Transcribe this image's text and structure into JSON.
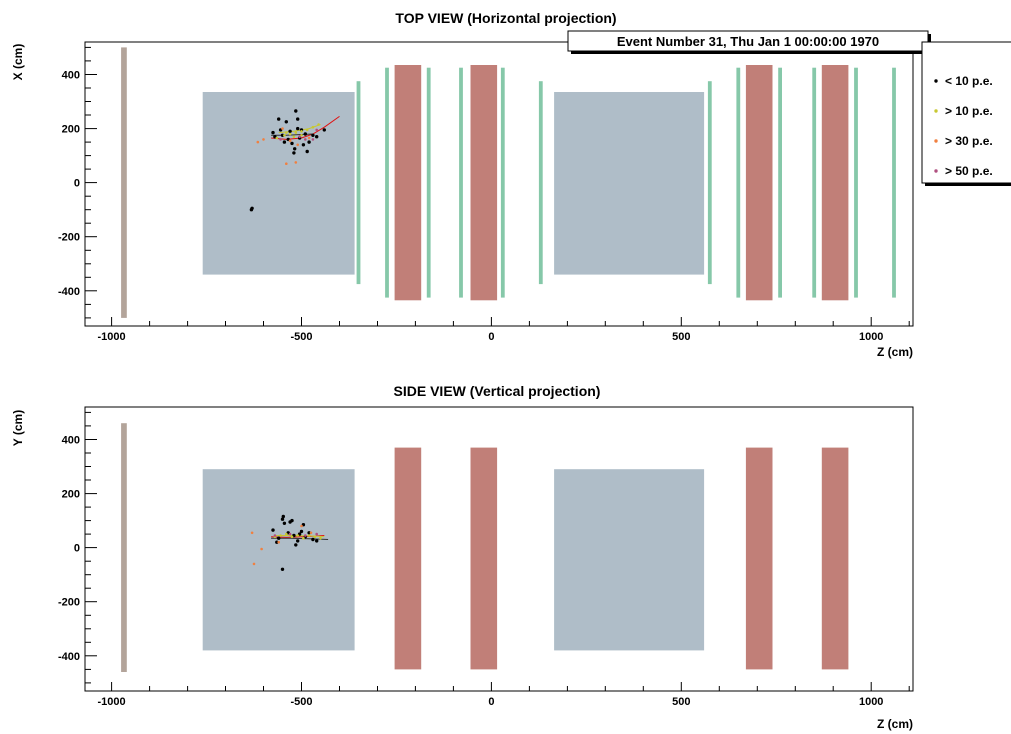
{
  "event_label": "Event Number 31, Thu Jan  1 00:00:00 1970",
  "legend": [
    {
      "label": "< 10 p.e.",
      "color": "#000000"
    },
    {
      "label": "> 10 p.e.",
      "color": "#c8c832"
    },
    {
      "label": "> 30 p.e.",
      "color": "#f08040"
    },
    {
      "label": "> 50 p.e.",
      "color": "#b05080"
    }
  ],
  "colors": {
    "steel": "#b3a49a",
    "block": "#afbdc8",
    "magnet": "#c17f78",
    "station": "#86c8a9",
    "track_red": "#e01010",
    "track_dark": "#333333"
  },
  "chart_data": [
    {
      "type": "scatter",
      "title": "TOP VIEW (Horizontal projection)",
      "xlabel": "Z (cm)",
      "ylabel": "X (cm)",
      "xlim": [
        -1070,
        1110
      ],
      "ylim": [
        -530,
        520
      ],
      "x_ticks": [
        -1000,
        -500,
        0,
        500,
        1000
      ],
      "x_tick_labels": [
        "-1000",
        "-500",
        "0",
        "500",
        "1000"
      ],
      "y_ticks": [
        -400,
        -200,
        0,
        200,
        400
      ],
      "y_tick_labels": [
        "-400",
        "-200",
        "0",
        "200",
        "400"
      ],
      "detector": [
        {
          "kind": "steel",
          "z": [
            -975,
            -960
          ],
          "v": [
            -500,
            500
          ]
        },
        {
          "kind": "block",
          "z": [
            -760,
            -360
          ],
          "v": [
            -340,
            335
          ]
        },
        {
          "kind": "block",
          "z": [
            165,
            560
          ],
          "v": [
            -340,
            335
          ]
        },
        {
          "kind": "magnet",
          "z": [
            -255,
            -185
          ],
          "v": [
            -435,
            435
          ]
        },
        {
          "kind": "magnet",
          "z": [
            -55,
            15
          ],
          "v": [
            -435,
            435
          ]
        },
        {
          "kind": "magnet",
          "z": [
            670,
            740
          ],
          "v": [
            -435,
            435
          ]
        },
        {
          "kind": "magnet",
          "z": [
            870,
            940
          ],
          "v": [
            -435,
            435
          ]
        },
        {
          "kind": "station",
          "z": [
            -355,
            -345
          ],
          "v": [
            -375,
            375
          ]
        },
        {
          "kind": "station",
          "z": [
            -280,
            -270
          ],
          "v": [
            -425,
            425
          ]
        },
        {
          "kind": "station",
          "z": [
            -170,
            -160
          ],
          "v": [
            -425,
            425
          ]
        },
        {
          "kind": "station",
          "z": [
            -85,
            -75
          ],
          "v": [
            -425,
            425
          ]
        },
        {
          "kind": "station",
          "z": [
            25,
            35
          ],
          "v": [
            -425,
            425
          ]
        },
        {
          "kind": "station",
          "z": [
            125,
            135
          ],
          "v": [
            -375,
            375
          ]
        },
        {
          "kind": "station",
          "z": [
            570,
            580
          ],
          "v": [
            -375,
            375
          ]
        },
        {
          "kind": "station",
          "z": [
            645,
            655
          ],
          "v": [
            -425,
            425
          ]
        },
        {
          "kind": "station",
          "z": [
            755,
            765
          ],
          "v": [
            -425,
            425
          ]
        },
        {
          "kind": "station",
          "z": [
            845,
            855
          ],
          "v": [
            -425,
            425
          ]
        },
        {
          "kind": "station",
          "z": [
            955,
            965
          ],
          "v": [
            -425,
            425
          ]
        },
        {
          "kind": "station",
          "z": [
            1055,
            1065
          ],
          "v": [
            -425,
            425
          ]
        }
      ],
      "tracks": [
        {
          "color": "red",
          "points": [
            [
              -580,
              165
            ],
            [
              -540,
              160
            ],
            [
              -500,
              165
            ],
            [
              -470,
              180
            ],
            [
              -440,
              205
            ],
            [
              -400,
              245
            ]
          ]
        },
        {
          "color": "dark",
          "points": [
            [
              -580,
              175
            ],
            [
              -540,
              175
            ],
            [
              -500,
              178
            ],
            [
              -470,
              180
            ]
          ]
        },
        {
          "color": "yellow",
          "points": [
            [
              -560,
              185
            ],
            [
              -520,
              190
            ],
            [
              -480,
              200
            ],
            [
              -450,
              215
            ]
          ]
        }
      ],
      "hits": [
        [
          -575,
          185,
          0
        ],
        [
          -560,
          235,
          0
        ],
        [
          -555,
          195,
          0
        ],
        [
          -550,
          175,
          0
        ],
        [
          -540,
          225,
          0
        ],
        [
          -535,
          160,
          0
        ],
        [
          -530,
          190,
          0
        ],
        [
          -525,
          145,
          0
        ],
        [
          -520,
          110,
          0
        ],
        [
          -518,
          125,
          0
        ],
        [
          -515,
          265,
          0
        ],
        [
          -510,
          235,
          0
        ],
        [
          -505,
          165,
          0
        ],
        [
          -500,
          195,
          0
        ],
        [
          -495,
          140,
          0
        ],
        [
          -490,
          180,
          0
        ],
        [
          -485,
          115,
          0
        ],
        [
          -480,
          150,
          0
        ],
        [
          -470,
          175,
          0
        ],
        [
          -460,
          170,
          0
        ],
        [
          -440,
          195,
          0
        ],
        [
          -570,
          170,
          0
        ],
        [
          -545,
          150,
          0
        ],
        [
          -510,
          200,
          0
        ],
        [
          -630,
          -95,
          0
        ],
        [
          -632,
          -100,
          0
        ],
        [
          -565,
          165,
          1
        ],
        [
          -545,
          175,
          1
        ],
        [
          -530,
          180,
          1
        ],
        [
          -515,
          185,
          1
        ],
        [
          -500,
          190,
          1
        ],
        [
          -485,
          195,
          1
        ],
        [
          -470,
          205,
          1
        ],
        [
          -455,
          215,
          1
        ],
        [
          -520,
          170,
          1
        ],
        [
          -540,
          185,
          1
        ],
        [
          -500,
          175,
          1
        ],
        [
          -615,
          150,
          2
        ],
        [
          -600,
          160,
          2
        ],
        [
          -540,
          70,
          2
        ],
        [
          -515,
          75,
          2
        ],
        [
          -550,
          200,
          2
        ],
        [
          -480,
          165,
          2
        ],
        [
          -530,
          155,
          2
        ],
        [
          -510,
          140,
          2
        ],
        [
          -555,
          160,
          3
        ],
        [
          -505,
          170,
          3
        ],
        [
          -470,
          160,
          3
        ],
        [
          -460,
          195,
          3
        ],
        [
          -490,
          160,
          3
        ]
      ]
    },
    {
      "type": "scatter",
      "title": "SIDE VIEW (Vertical projection)",
      "xlabel": "Z (cm)",
      "ylabel": "Y (cm)",
      "xlim": [
        -1070,
        1110
      ],
      "ylim": [
        -530,
        520
      ],
      "x_ticks": [
        -1000,
        -500,
        0,
        500,
        1000
      ],
      "x_tick_labels": [
        "-1000",
        "-500",
        "0",
        "500",
        "1000"
      ],
      "y_ticks": [
        -400,
        -200,
        0,
        200,
        400
      ],
      "y_tick_labels": [
        "-400",
        "-200",
        "0",
        "200",
        "400"
      ],
      "detector": [
        {
          "kind": "steel",
          "z": [
            -975,
            -960
          ],
          "v": [
            -460,
            460
          ]
        },
        {
          "kind": "block",
          "z": [
            -760,
            -360
          ],
          "v": [
            -380,
            290
          ]
        },
        {
          "kind": "block",
          "z": [
            165,
            560
          ],
          "v": [
            -380,
            290
          ]
        },
        {
          "kind": "magnet",
          "z": [
            -255,
            -185
          ],
          "v": [
            -450,
            370
          ]
        },
        {
          "kind": "magnet",
          "z": [
            -55,
            15
          ],
          "v": [
            -450,
            370
          ]
        },
        {
          "kind": "magnet",
          "z": [
            670,
            740
          ],
          "v": [
            -450,
            370
          ]
        },
        {
          "kind": "magnet",
          "z": [
            870,
            940
          ],
          "v": [
            -450,
            370
          ]
        }
      ],
      "tracks": [
        {
          "color": "red",
          "points": [
            [
              -580,
              40
            ],
            [
              -540,
              38
            ],
            [
              -500,
              40
            ],
            [
              -470,
              42
            ],
            [
              -440,
              45
            ]
          ]
        },
        {
          "color": "dark",
          "points": [
            [
              -580,
              35
            ],
            [
              -530,
              35
            ],
            [
              -480,
              33
            ],
            [
              -430,
              30
            ]
          ]
        },
        {
          "color": "yellow",
          "points": [
            [
              -570,
              45
            ],
            [
              -520,
              45
            ],
            [
              -470,
              43
            ],
            [
              -440,
              40
            ]
          ]
        }
      ],
      "hits": [
        [
          -575,
          65,
          0
        ],
        [
          -560,
          35,
          0
        ],
        [
          -550,
          105,
          0
        ],
        [
          -548,
          115,
          0
        ],
        [
          -545,
          90,
          0
        ],
        [
          -535,
          55,
          0
        ],
        [
          -530,
          95,
          0
        ],
        [
          -525,
          100,
          0
        ],
        [
          -520,
          45,
          0
        ],
        [
          -515,
          10,
          0
        ],
        [
          -510,
          25,
          0
        ],
        [
          -500,
          60,
          0
        ],
        [
          -495,
          85,
          0
        ],
        [
          -490,
          40,
          0
        ],
        [
          -480,
          55,
          0
        ],
        [
          -470,
          30,
          0
        ],
        [
          -460,
          25,
          0
        ],
        [
          -550,
          -80,
          0
        ],
        [
          -565,
          20,
          0
        ],
        [
          -505,
          50,
          0
        ],
        [
          -570,
          40,
          1
        ],
        [
          -555,
          45,
          1
        ],
        [
          -540,
          50,
          1
        ],
        [
          -525,
          40,
          1
        ],
        [
          -510,
          45,
          1
        ],
        [
          -495,
          35,
          1
        ],
        [
          -480,
          45,
          1
        ],
        [
          -465,
          40,
          1
        ],
        [
          -450,
          35,
          1
        ],
        [
          -630,
          55,
          2
        ],
        [
          -625,
          -60,
          2
        ],
        [
          -605,
          -5,
          2
        ],
        [
          -560,
          20,
          2
        ],
        [
          -500,
          80,
          2
        ],
        [
          -475,
          55,
          2
        ],
        [
          -570,
          45,
          3
        ],
        [
          -530,
          50,
          3
        ],
        [
          -490,
          45,
          3
        ],
        [
          -460,
          50,
          3
        ]
      ]
    }
  ]
}
